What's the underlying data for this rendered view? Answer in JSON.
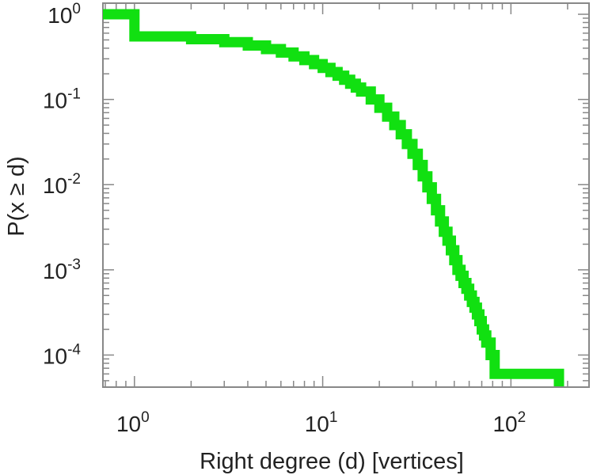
{
  "chart_data": {
    "type": "line",
    "step": true,
    "xscale": "log",
    "yscale": "log",
    "xlabel": "Right degree (d) [vertices]",
    "ylabel": "P(x ≥ d)",
    "xlim": [
      0.68,
      260
    ],
    "ylim": [
      4.2e-05,
      1.35
    ],
    "grid": false,
    "line_color": "#11e011",
    "x_ticks": [
      {
        "base": "10",
        "exp": "0",
        "value": 1
      },
      {
        "base": "10",
        "exp": "1",
        "value": 10
      },
      {
        "base": "10",
        "exp": "2",
        "value": 100
      }
    ],
    "y_ticks": [
      {
        "base": "10",
        "exp": "0",
        "value": 1
      },
      {
        "base": "10",
        "exp": "-1",
        "value": 0.1
      },
      {
        "base": "10",
        "exp": "-2",
        "value": 0.01
      },
      {
        "base": "10",
        "exp": "-3",
        "value": 0.001
      },
      {
        "base": "10",
        "exp": "-4",
        "value": 0.0001
      }
    ],
    "series": [
      {
        "x": [
          0.68,
          1,
          2,
          3,
          4,
          5,
          6,
          7,
          8,
          9,
          10,
          11,
          12,
          13,
          14,
          15,
          16,
          18,
          20,
          22,
          24,
          26,
          28,
          30,
          32,
          34,
          36,
          38,
          40,
          42,
          44,
          46,
          48,
          50,
          52,
          54,
          56,
          58,
          60,
          62,
          64,
          66,
          68,
          70,
          72,
          74,
          78,
          82,
          180
        ],
        "y": [
          1,
          0.55,
          0.51,
          0.47,
          0.43,
          0.39,
          0.355,
          0.32,
          0.29,
          0.26,
          0.235,
          0.21,
          0.19,
          0.17,
          0.153,
          0.138,
          0.124,
          0.1,
          0.08,
          0.063,
          0.05,
          0.039,
          0.03,
          0.023,
          0.017,
          0.0125,
          0.0093,
          0.0068,
          0.005,
          0.0037,
          0.0028,
          0.0022,
          0.0017,
          0.0013,
          0.001,
          0.00085,
          0.0007,
          0.0006,
          0.0005,
          0.00042,
          0.00036,
          0.0003,
          0.00025,
          0.0002,
          0.00017,
          0.00014,
          0.0001,
          6e-05,
          4.5e-05
        ]
      }
    ]
  }
}
